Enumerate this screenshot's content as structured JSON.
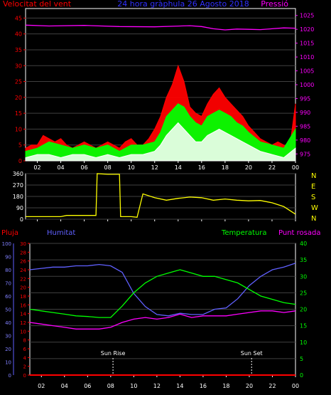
{
  "colors": {
    "wind": "#ff0000",
    "pressure": "#ff00ff",
    "gust": "#00ff00",
    "windAvg": "#ffffff",
    "direction": "#ffff00",
    "rain": "#ff0000",
    "humidity": "#6060ff",
    "temperature": "#00ff00",
    "dewpoint": "#ff00ff",
    "axis": "#ffffff",
    "grid": "#404040"
  },
  "chart_data": [
    {
      "type": "area",
      "header_left": "Velocitat del vent",
      "header_center": "24 hora gràphula  26 Agosto 2018",
      "header_right": "Pressió",
      "x": {
        "ticks": [
          "02",
          "04",
          "06",
          "08",
          "10",
          "12",
          "14",
          "16",
          "18",
          "20",
          "22",
          "00"
        ],
        "range": [
          1,
          24
        ]
      },
      "yleft": {
        "ticks": [
          "0",
          "5",
          "10",
          "15",
          "20",
          "25",
          "30",
          "35",
          "40",
          "45"
        ],
        "range": [
          0,
          48
        ]
      },
      "yright": {
        "ticks": [
          "975",
          "980",
          "985",
          "990",
          "995",
          "1000",
          "1005",
          "1010",
          "1015",
          "1020",
          "1025"
        ],
        "range": [
          972.5,
          1027.5
        ]
      },
      "series": [
        {
          "key": "wind_max",
          "x": [
            1,
            1.5,
            2,
            2.5,
            3,
            3.5,
            4,
            4.5,
            5,
            5.5,
            6,
            6.5,
            7,
            7.5,
            8,
            8.5,
            9,
            9.5,
            10,
            10.5,
            11,
            11.5,
            12,
            12.5,
            13,
            13.5,
            14,
            14.5,
            15,
            15.5,
            16,
            16.5,
            17,
            17.5,
            18,
            18.5,
            19,
            19.5,
            20,
            20.5,
            21,
            21.5,
            22,
            22.5,
            23,
            23.5,
            24
          ],
          "values": [
            4,
            5,
            5,
            8,
            7,
            6,
            7,
            5,
            4,
            5,
            6,
            5,
            4,
            5,
            6,
            5,
            4,
            6,
            7,
            5,
            5,
            7,
            10,
            14,
            20,
            24,
            30,
            25,
            17,
            15,
            14,
            18,
            21,
            23,
            20,
            18,
            16,
            14,
            11,
            9,
            7,
            6,
            5,
            6,
            5,
            4,
            18
          ]
        },
        {
          "key": "gust",
          "x": [
            1,
            2,
            3,
            4,
            5,
            6,
            7,
            8,
            9,
            10,
            11,
            12,
            12.5,
            13,
            13.5,
            14,
            14.5,
            15,
            15.5,
            16,
            16.5,
            17,
            17.5,
            18,
            18.5,
            19,
            19.5,
            20,
            21,
            22,
            23,
            24
          ],
          "values": [
            3,
            4,
            6,
            5,
            4,
            5,
            4,
            5,
            3,
            5,
            5,
            6,
            9,
            14,
            16,
            18,
            17,
            14,
            12,
            11,
            14,
            15,
            16,
            15,
            14,
            12,
            11,
            9,
            6,
            5,
            4,
            10
          ]
        },
        {
          "key": "wind_avg",
          "x": [
            1,
            2,
            3,
            4,
            5,
            6,
            7,
            8,
            9,
            10,
            11,
            12,
            12.5,
            13,
            13.5,
            14,
            14.5,
            15,
            15.5,
            16,
            16.5,
            17,
            17.5,
            18,
            18.5,
            19,
            19.5,
            20,
            21,
            22,
            23,
            24
          ],
          "values": [
            1,
            2,
            2,
            1,
            2,
            2,
            1,
            2,
            1,
            2,
            2,
            3,
            5,
            8,
            10,
            12,
            10,
            8,
            6,
            6,
            8,
            9,
            10,
            9,
            8,
            7,
            6,
            5,
            3,
            2,
            1,
            4
          ]
        },
        {
          "key": "pressure",
          "x": [
            1,
            3,
            6,
            9,
            12,
            15,
            16,
            17,
            18,
            19,
            20,
            21,
            22,
            23,
            24
          ],
          "values": [
            1021.5,
            1021.2,
            1021.4,
            1021.0,
            1020.9,
            1021.3,
            1021.0,
            1020.2,
            1019.8,
            1020.1,
            1020.0,
            1019.9,
            1020.2,
            1020.5,
            1020.4
          ]
        }
      ]
    },
    {
      "type": "line",
      "x": {
        "ticks": [
          "02",
          "04",
          "06",
          "08",
          "10",
          "12",
          "14",
          "16",
          "18",
          "20",
          "22",
          "00"
        ],
        "range": [
          1,
          24
        ]
      },
      "yleft": {
        "ticks": [
          "0",
          "90",
          "180",
          "270",
          "360"
        ],
        "range": [
          0,
          360
        ]
      },
      "yright": {
        "ticks": [
          "N",
          "E",
          "S",
          "W",
          "N"
        ]
      },
      "series": [
        {
          "key": "direction",
          "x": [
            1,
            2,
            3,
            4,
            4.5,
            5,
            6,
            7,
            7.1,
            8,
            9,
            9.1,
            9.5,
            10,
            10.5,
            11,
            12,
            13,
            14,
            15,
            16,
            17,
            18,
            19,
            20,
            21,
            22,
            23,
            23.5,
            24
          ],
          "values": [
            20,
            20,
            20,
            20,
            30,
            30,
            30,
            30,
            360,
            355,
            355,
            20,
            20,
            20,
            15,
            200,
            170,
            150,
            165,
            175,
            170,
            150,
            160,
            150,
            145,
            148,
            130,
            100,
            70,
            40
          ]
        }
      ]
    },
    {
      "type": "line",
      "header_left": "Pluja",
      "header_humidity": "Humitat",
      "header_temp": "Temperatura",
      "header_dew": "Punt rosada",
      "x": {
        "ticks": [
          "02",
          "04",
          "06",
          "08",
          "10",
          "12",
          "14",
          "16",
          "18",
          "20",
          "22",
          "00"
        ],
        "range": [
          1,
          24
        ]
      },
      "yhum": {
        "ticks": [
          "0",
          "10",
          "20",
          "30",
          "40",
          "50",
          "60",
          "70",
          "80",
          "90",
          "100"
        ],
        "range": [
          0,
          100
        ]
      },
      "yrain": {
        "ticks": [
          "0",
          "2",
          "4",
          "6",
          "8",
          "10",
          "12",
          "14",
          "16",
          "18",
          "20",
          "22",
          "24",
          "26",
          "28",
          "30"
        ],
        "range": [
          0,
          30
        ]
      },
      "ytemp": {
        "ticks": [
          "0",
          "5",
          "10",
          "15",
          "20",
          "25",
          "30",
          "35",
          "40"
        ],
        "range": [
          0,
          40
        ]
      },
      "annotations": [
        {
          "label": "Sun Rise",
          "x": 8.2
        },
        {
          "label": "Sun Set",
          "x": 20.2
        }
      ],
      "series": [
        {
          "key": "rain",
          "x": [
            1,
            24
          ],
          "values": [
            0,
            0
          ]
        },
        {
          "key": "humidity",
          "x": [
            1,
            2,
            3,
            4,
            5,
            6,
            7,
            8,
            9,
            10,
            11,
            12,
            13,
            14,
            15,
            16,
            17,
            18,
            19,
            20,
            21,
            22,
            23,
            24
          ],
          "values": [
            80,
            81,
            82,
            82,
            83,
            83,
            84,
            83,
            78,
            62,
            52,
            46,
            45,
            47,
            46,
            46,
            50,
            51,
            58,
            68,
            75,
            80,
            82,
            85
          ]
        },
        {
          "key": "temperature",
          "x": [
            1,
            2,
            3,
            4,
            5,
            6,
            7,
            8,
            9,
            10,
            11,
            12,
            13,
            14,
            15,
            16,
            17,
            18,
            19,
            20,
            21,
            22,
            23,
            24
          ],
          "values": [
            20,
            19.5,
            19,
            18.5,
            18,
            17.8,
            17.5,
            17.5,
            21,
            25,
            28,
            30,
            31,
            32,
            31,
            30,
            30,
            29,
            28,
            26,
            24,
            23,
            22,
            21.5
          ]
        },
        {
          "key": "dewpoint",
          "x": [
            1,
            2,
            3,
            4,
            5,
            6,
            7,
            8,
            9,
            10,
            11,
            12,
            13,
            14,
            15,
            16,
            17,
            18,
            19,
            20,
            21,
            22,
            23,
            24
          ],
          "values": [
            16,
            15.5,
            15,
            14.5,
            14,
            14,
            14,
            14.5,
            16,
            17,
            17.5,
            17,
            17.5,
            18.5,
            17.5,
            18,
            18,
            18,
            18.5,
            19,
            19.5,
            19.5,
            19,
            19.5
          ]
        }
      ]
    }
  ]
}
